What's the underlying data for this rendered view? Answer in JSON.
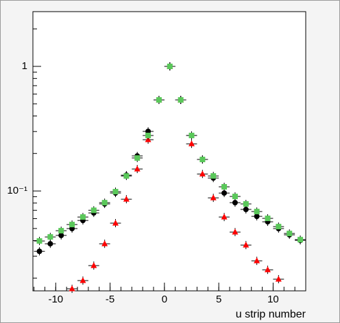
{
  "chart_data": {
    "type": "scatter",
    "x_label": "u strip number",
    "x": [
      -11.5,
      -10.5,
      -9.5,
      -8.5,
      -7.5,
      -6.5,
      -5.5,
      -4.5,
      -3.5,
      -2.5,
      -1.5,
      -0.5,
      0.5,
      1.5,
      2.5,
      3.5,
      4.5,
      5.5,
      6.5,
      7.5,
      8.5,
      9.5,
      10.5,
      11.5,
      12.5
    ],
    "series": [
      {
        "color": "#000000",
        "marker": "circle",
        "values": [
          0.0328,
          0.0377,
          0.044,
          0.0499,
          0.058,
          0.0667,
          0.0787,
          0.0963,
          0.134,
          0.191,
          0.301,
          0.538,
          1,
          0.538,
          0.279,
          0.179,
          0.127,
          0.0963,
          0.0806,
          0.0711,
          0.0626,
          0.0566,
          0.0499,
          0.0445,
          0.0402
        ]
      },
      {
        "color": "#ff0000",
        "marker": "triangle",
        "values": [
          null,
          null,
          null,
          0.0164,
          0.0191,
          0.0252,
          0.0377,
          0.0552,
          0.0859,
          0.15,
          0.258,
          0.538,
          1,
          0.538,
          0.239,
          0.137,
          0.0881,
          0.0618,
          0.0468,
          0.0368,
          0.0275,
          0.0233,
          0.0196,
          null,
          null
        ]
      },
      {
        "color": "#5ac85a",
        "marker": "square",
        "values": [
          0.0397,
          0.0428,
          0.048,
          0.0538,
          0.0618,
          0.07,
          0.0806,
          0.0988,
          0.132,
          0.184,
          0.279,
          0.538,
          1,
          0.538,
          0.279,
          0.179,
          0.132,
          0.108,
          0.0904,
          0.0787,
          0.0684,
          0.0603,
          0.0518,
          0.0456,
          0.0407
        ]
      }
    ],
    "xlim": [
      -12.1,
      13
    ],
    "xticks": [
      -10,
      -5,
      0,
      5,
      10
    ],
    "ylim": [
      0.0158,
      2.75
    ],
    "log_y": true,
    "yticks": [
      {
        "value": 1,
        "label": "1"
      },
      {
        "value": 0.1,
        "label": "10⁻¹"
      }
    ],
    "grid": false
  }
}
